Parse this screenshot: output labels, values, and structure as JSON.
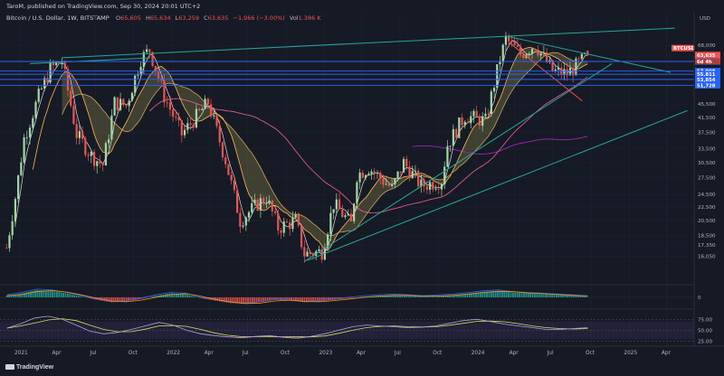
{
  "header": {
    "publisher": "TaroM, published on TradingView.com, Sep 30, 2024 20:01 UTC+2",
    "symbol_line": "Bitcoin / U.S. Dollar, 1W, BITSTAMP",
    "ohlc": {
      "o_label": "O",
      "o_value": "65,605",
      "h_label": "H",
      "h_value": "65,634",
      "l_label": "L",
      "l_value": "63,259",
      "c_label": "C",
      "c_value": "63,635",
      "change": "−1,966 (−3.00%)",
      "vol_label": "Vol",
      "vol_value": "1.386 K"
    }
  },
  "currency_label": "USD",
  "branding": "TradingView",
  "colors": {
    "background": "#161a25",
    "up": "#a5d6a7",
    "down": "#ef5350",
    "trendline": "#26a69a",
    "hline": "#2962ff",
    "ma_long": "#9c27b0",
    "ma_mid": "#f06292",
    "ma_short": "#ffb74d"
  },
  "chart_data": [
    {
      "type": "candlestick",
      "timeframe": "1W",
      "title": "Bitcoin / U.S. Dollar, 1W, BITSTAMP",
      "y_scale": "log",
      "ylim": [
        13800,
        78000
      ],
      "y_ticks": [
        "68,000",
        "62,500",
        "57,500",
        "52,500",
        "45,500",
        "41,500",
        "37,500",
        "33,500",
        "30,500",
        "27,500",
        "24,500",
        "22,500",
        "20,500",
        "18,500",
        "17,350",
        "16,050"
      ],
      "x_ticks": [
        "2021",
        "Apr",
        "Jul",
        "Oct",
        "2022",
        "Apr",
        "Jul",
        "Oct",
        "2023",
        "Apr",
        "Jul",
        "Oct",
        "2024",
        "Apr",
        "Jul",
        "Oct",
        "2025",
        "Apr"
      ],
      "close_path": [
        {
          "x": "2020-11-30",
          "y": 17000
        },
        {
          "x": "2020-12-21",
          "y": 24000
        },
        {
          "x": "2021-01-11",
          "y": 36000
        },
        {
          "x": "2021-02-15",
          "y": 48000
        },
        {
          "x": "2021-03-15",
          "y": 58000
        },
        {
          "x": "2021-04-12",
          "y": 61000
        },
        {
          "x": "2021-05-17",
          "y": 37000
        },
        {
          "x": "2021-06-21",
          "y": 32000
        },
        {
          "x": "2021-07-19",
          "y": 30000
        },
        {
          "x": "2021-08-16",
          "y": 46000
        },
        {
          "x": "2021-09-13",
          "y": 45000
        },
        {
          "x": "2021-10-18",
          "y": 62000
        },
        {
          "x": "2021-11-08",
          "y": 66000
        },
        {
          "x": "2021-12-13",
          "y": 48000
        },
        {
          "x": "2022-01-24",
          "y": 37000
        },
        {
          "x": "2022-03-28",
          "y": 46000
        },
        {
          "x": "2022-05-09",
          "y": 31000
        },
        {
          "x": "2022-06-13",
          "y": 20500
        },
        {
          "x": "2022-07-25",
          "y": 23000
        },
        {
          "x": "2022-08-15",
          "y": 24000
        },
        {
          "x": "2022-09-12",
          "y": 19500
        },
        {
          "x": "2022-10-24",
          "y": 20500
        },
        {
          "x": "2022-11-14",
          "y": 16300
        },
        {
          "x": "2022-12-26",
          "y": 16600
        },
        {
          "x": "2023-01-23",
          "y": 23000
        },
        {
          "x": "2023-03-06",
          "y": 20000
        },
        {
          "x": "2023-03-20",
          "y": 28000
        },
        {
          "x": "2023-04-17",
          "y": 29500
        },
        {
          "x": "2023-06-12",
          "y": 25500
        },
        {
          "x": "2023-07-10",
          "y": 30500
        },
        {
          "x": "2023-08-21",
          "y": 26000
        },
        {
          "x": "2023-10-09",
          "y": 27000
        },
        {
          "x": "2023-10-23",
          "y": 34500
        },
        {
          "x": "2023-12-04",
          "y": 42000
        },
        {
          "x": "2024-01-22",
          "y": 40500
        },
        {
          "x": "2024-02-26",
          "y": 62000
        },
        {
          "x": "2024-03-11",
          "y": 71000
        },
        {
          "x": "2024-04-15",
          "y": 64000
        },
        {
          "x": "2024-05-20",
          "y": 68500
        },
        {
          "x": "2024-07-01",
          "y": 57000
        },
        {
          "x": "2024-08-05",
          "y": 56000
        },
        {
          "x": "2024-08-26",
          "y": 59000
        },
        {
          "x": "2024-09-23",
          "y": 63635
        }
      ],
      "horizontal_levels": [
        {
          "label": "63,635",
          "value": 63635,
          "color": "#ef5350",
          "kind": "price"
        },
        {
          "label": "60,901",
          "value": 60901,
          "color": "#2962ff"
        },
        {
          "label": "57,008",
          "value": 57008,
          "color": "#2962ff"
        },
        {
          "label": "55,811",
          "value": 55811,
          "color": "#2962ff"
        },
        {
          "label": "53,854",
          "value": 53854,
          "color": "#2962ff"
        },
        {
          "label": "51,728",
          "value": 51728,
          "color": "#2962ff"
        }
      ],
      "current_symbol_badge": "BTCUSD",
      "countdown_badge": "6d 4h"
    },
    {
      "type": "histogram",
      "name": "oscillator",
      "y_ticks": [
        "0"
      ],
      "values": [
        0.2,
        0.5,
        0.9,
        0.8,
        0.5,
        0.1,
        -0.3,
        -0.6,
        -0.5,
        -0.2,
        0.2,
        0.5,
        0.4,
        -0.1,
        -0.4,
        -0.7,
        -0.8,
        -0.6,
        -0.3,
        -0.4,
        -0.6,
        -0.5,
        -0.3,
        -0.1,
        0.1,
        0.2,
        0.3,
        0.2,
        0.1,
        0.2,
        0.3,
        0.5,
        0.7,
        0.8,
        0.6,
        0.5,
        0.4,
        0.3,
        0.2,
        0.1
      ]
    },
    {
      "type": "line",
      "name": "rsi",
      "ylim": [
        20,
        90
      ],
      "y_ticks": [
        "75.00",
        "50.00",
        "25.00"
      ],
      "values": [
        55,
        65,
        78,
        82,
        75,
        62,
        48,
        42,
        45,
        52,
        60,
        68,
        62,
        50,
        42,
        38,
        35,
        33,
        36,
        38,
        34,
        32,
        36,
        42,
        50,
        58,
        62,
        60,
        58,
        56,
        57,
        60,
        66,
        72,
        75,
        70,
        64,
        60,
        56,
        52,
        52,
        54,
        56
      ]
    }
  ]
}
